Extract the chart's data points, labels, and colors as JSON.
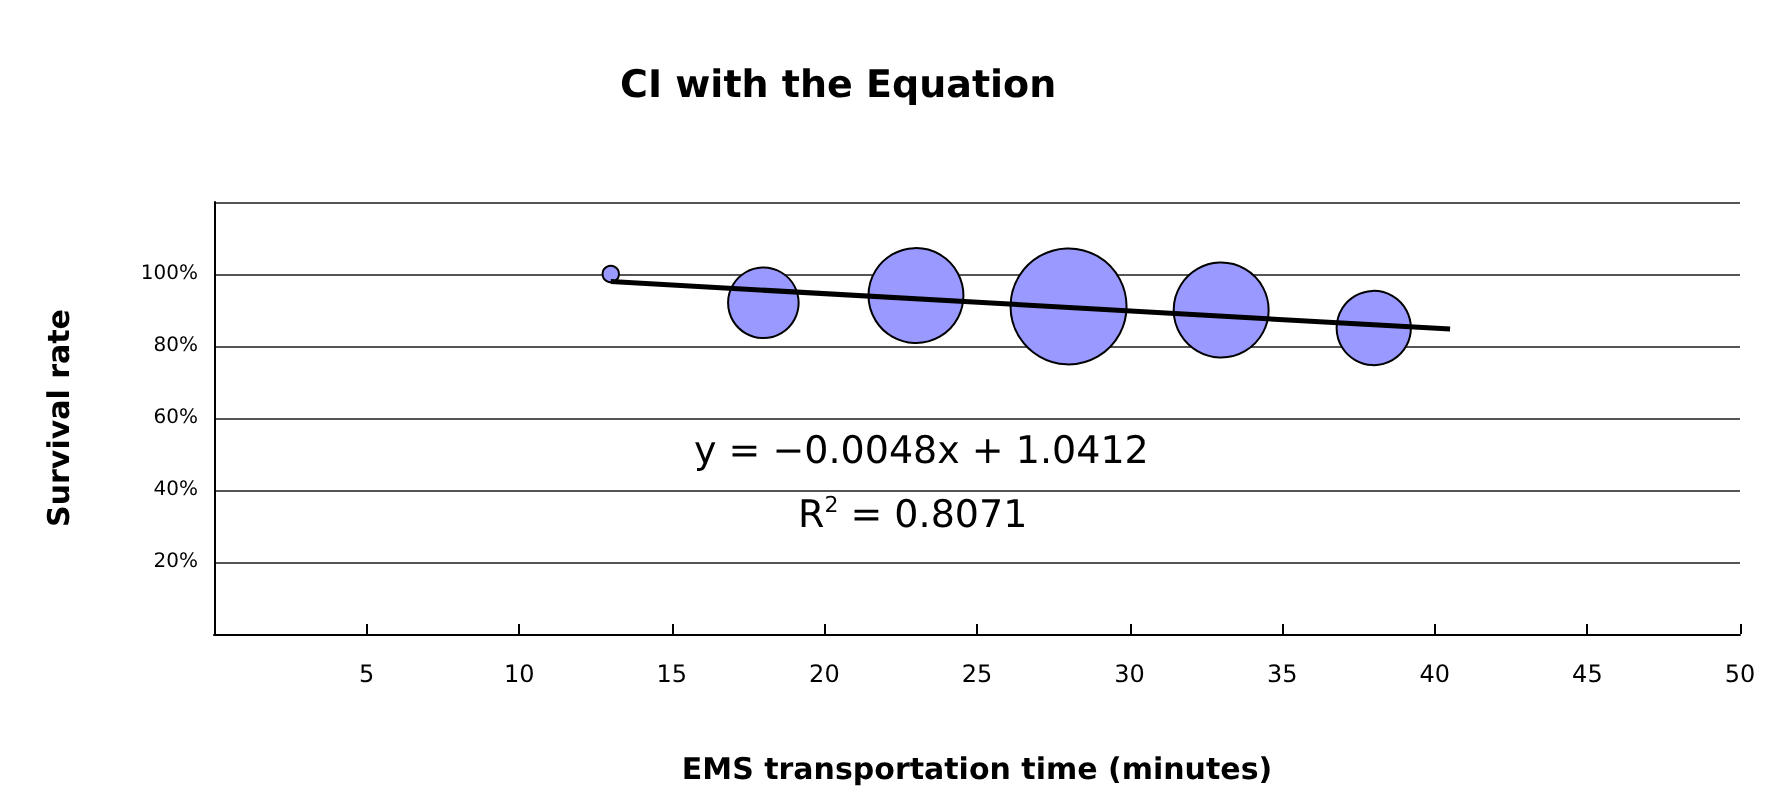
{
  "chart_data": {
    "type": "bubble",
    "title": "CI with the Equation",
    "xlabel": "EMS transportation time (minutes)",
    "ylabel": "Survival rate",
    "x": [
      13,
      18,
      23,
      28,
      33,
      38
    ],
    "series": [
      {
        "color": "#9999ff",
        "values": [
          1.0,
          0.92,
          0.94,
          0.91,
          0.9,
          0.85
        ],
        "sizes": [
          0.02,
          0.37,
          0.67,
          1,
          0.67,
          0.41
        ]
      },
      {
        "type": "line",
        "color": "#000000",
        "x": [
          13,
          40.5
        ],
        "values": [
          0.979,
          0.847
        ]
      }
    ],
    "xlim": [
      0,
      50
    ],
    "xticks": [
      5,
      10,
      15,
      20,
      25,
      30,
      35,
      40,
      45,
      50
    ],
    "ylim": [
      0,
      1.2
    ],
    "yticks": [
      {
        "value": 0,
        "label": null
      },
      {
        "value": 0.2,
        "label": "20%"
      },
      {
        "value": 0.4,
        "label": "40%"
      },
      {
        "value": 0.6,
        "label": "60%"
      },
      {
        "value": 0.8,
        "label": "80%"
      },
      {
        "value": 1,
        "label": "100%"
      },
      {
        "value": 1.2,
        "label": null
      }
    ],
    "grid": "y",
    "annotations": [
      "y = −0.0048x + 1.0412",
      "R$^{2}$ = 0.8071"
    ]
  }
}
